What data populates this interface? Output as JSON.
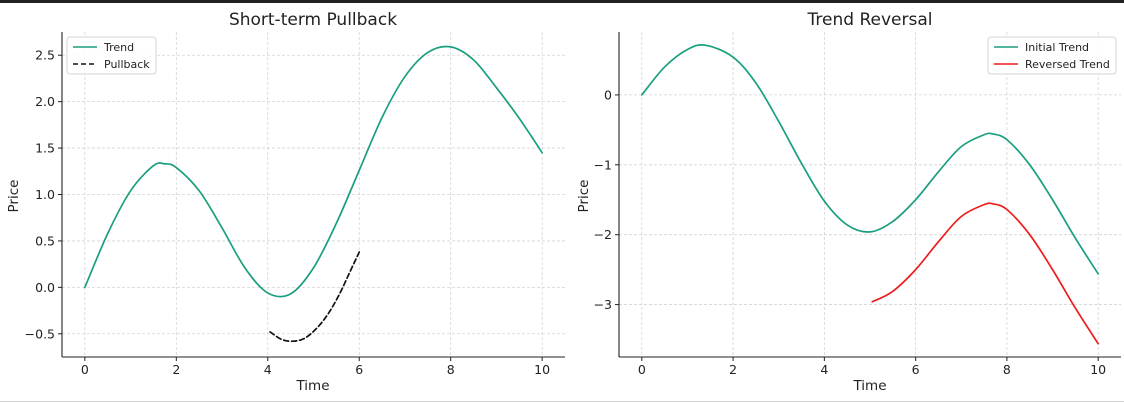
{
  "chart_data": [
    {
      "type": "line",
      "title": "Short-term Pullback",
      "xlabel": "Time",
      "ylabel": "Price",
      "xlim": [
        -0.5,
        10.5
      ],
      "ylim": [
        -0.75,
        2.75
      ],
      "xticks": [
        0,
        2,
        4,
        6,
        8,
        10
      ],
      "xtick_labels": [
        "0",
        "2",
        "4",
        "6",
        "8",
        "10"
      ],
      "yticks": [
        -0.5,
        0.0,
        0.5,
        1.0,
        1.5,
        2.0,
        2.5
      ],
      "ytick_labels": [
        "−0.5",
        "0.0",
        "0.5",
        "1.0",
        "1.5",
        "2.0",
        "2.5"
      ],
      "grid": true,
      "legend_position": "top-left",
      "series": [
        {
          "name": "Trend",
          "color": "#1a9e80",
          "style": "solid",
          "x": [
            0,
            0.5,
            1,
            1.5,
            1.75,
            2,
            2.5,
            3,
            3.5,
            4,
            4.5,
            5,
            5.5,
            6,
            6.5,
            7,
            7.5,
            8,
            8.5,
            9,
            9.5,
            10
          ],
          "y": [
            0,
            0.58,
            1.04,
            1.31,
            1.33,
            1.29,
            1.04,
            0.64,
            0.21,
            -0.06,
            -0.07,
            0.21,
            0.69,
            1.26,
            1.83,
            2.27,
            2.53,
            2.59,
            2.45,
            2.15,
            1.82,
            1.45
          ]
        },
        {
          "name": "Pullback",
          "color": "#111111",
          "style": "dashed",
          "x": [
            4.05,
            4.3,
            4.55,
            4.8,
            5.05,
            5.3,
            5.55,
            5.8,
            6.0
          ],
          "y": [
            -0.48,
            -0.56,
            -0.58,
            -0.55,
            -0.45,
            -0.3,
            -0.09,
            0.17,
            0.38
          ]
        }
      ]
    },
    {
      "type": "line",
      "title": "Trend Reversal",
      "xlabel": "Time",
      "ylabel": "Price",
      "xlim": [
        -0.5,
        10.5
      ],
      "ylim": [
        -3.75,
        0.9
      ],
      "xticks": [
        0,
        2,
        4,
        6,
        8,
        10
      ],
      "xtick_labels": [
        "0",
        "2",
        "4",
        "6",
        "8",
        "10"
      ],
      "yticks": [
        -3,
        -2,
        -1,
        0
      ],
      "ytick_labels": [
        "−3",
        "−2",
        "−1",
        "0"
      ],
      "grid": true,
      "legend_position": "top-right",
      "series": [
        {
          "name": "Initial Trend",
          "color": "#1a9e80",
          "style": "solid",
          "x": [
            0,
            0.5,
            1,
            1.4,
            2,
            2.5,
            3,
            3.5,
            4,
            4.5,
            5,
            5.5,
            6,
            6.5,
            7,
            7.5,
            7.7,
            8,
            8.5,
            9,
            9.5,
            10
          ],
          "y": [
            0,
            0.4,
            0.65,
            0.71,
            0.54,
            0.17,
            -0.38,
            -0.98,
            -1.52,
            -1.86,
            -1.96,
            -1.81,
            -1.5,
            -1.1,
            -0.74,
            -0.57,
            -0.56,
            -0.64,
            -1.0,
            -1.5,
            -2.05,
            -2.56
          ]
        },
        {
          "name": "Reversed Trend",
          "color": "#ee1c1c",
          "style": "solid",
          "x": [
            5.05,
            5.5,
            6,
            6.5,
            7,
            7.5,
            7.7,
            8,
            8.5,
            9,
            9.5,
            10
          ],
          "y": [
            -2.96,
            -2.81,
            -2.5,
            -2.1,
            -1.74,
            -1.57,
            -1.56,
            -1.64,
            -2.0,
            -2.5,
            -3.05,
            -3.56
          ]
        }
      ]
    }
  ]
}
